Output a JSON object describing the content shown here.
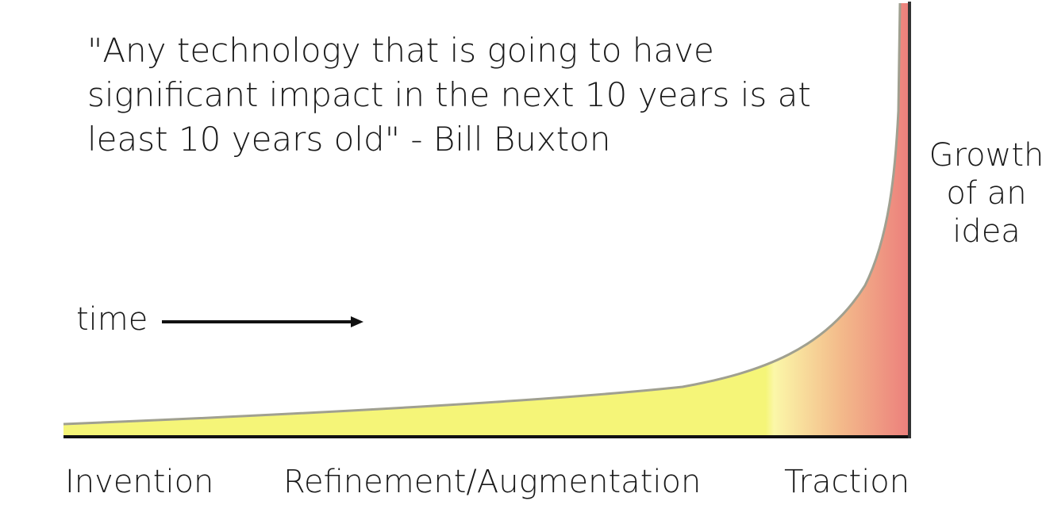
{
  "quote": {
    "lines": [
      "\"Any technology that is going to have",
      "significant impact in the next 10 years is at",
      "least 10 years old\" - Bill Buxton"
    ]
  },
  "axis": {
    "y_label_lines": [
      "Growth",
      "of an",
      "idea"
    ],
    "time_label": "time"
  },
  "stages": [
    "Invention",
    "Refinement/Augmentation",
    "Traction"
  ],
  "colors": {
    "fill_start": "#f5f578",
    "fill_mid": "#f7d98a",
    "fill_end": "#ec7f7c",
    "curve_edge": "#a0a090",
    "axis_line": "#111111"
  }
}
